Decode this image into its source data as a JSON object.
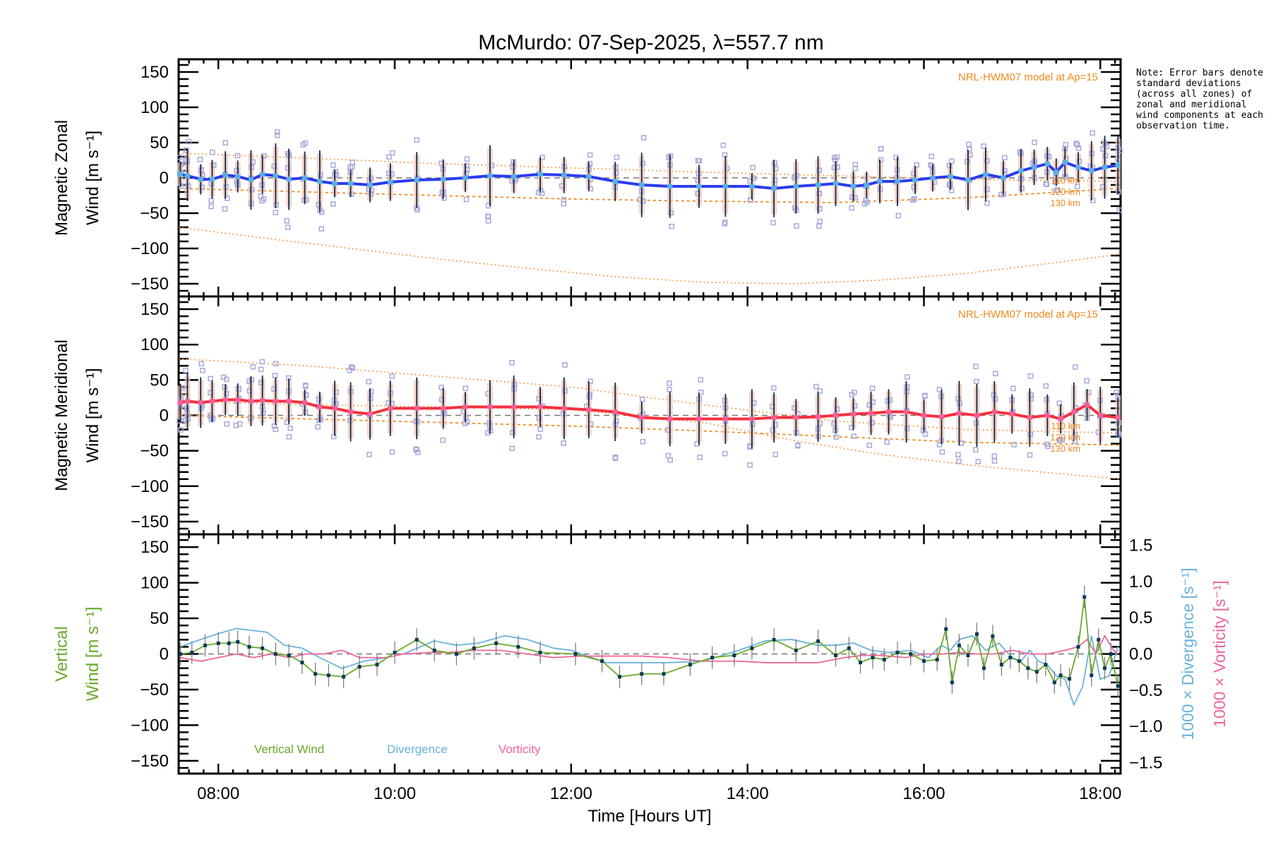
{
  "page_title": "McMurdo: 07-Sep-2025, λ=557.7 nm",
  "note": "Note: Error bars denote standard deviations (across all zones) of zonal and meridional wind components at each observation time.",
  "colors": {
    "zonal": "#2b3bf0",
    "zonal_marker": "#5ab0de",
    "meridional": "#f5303c",
    "meridional_marker": "#f0609a",
    "vertical": "#6aaa2a",
    "divergence": "#6ab2dc",
    "vorticity": "#f0659a",
    "model": "#f08a1e",
    "scatter": "#a8a8dc",
    "errorbar": "#0a2a4a"
  },
  "chart_data": [
    {
      "id": "zonal",
      "type": "line",
      "title": "McMurdo: 07-Sep-2025, λ=557.7 nm",
      "ylabel_line1": "Magnetic Zonal",
      "ylabel_line2": "Wind [m s⁻¹]",
      "xlabel": "",
      "ylim": [
        -168,
        168
      ],
      "yticks": [
        150,
        100,
        50,
        0,
        -50,
        -100,
        -150
      ],
      "xlim_hours": [
        7.55,
        18.23
      ],
      "model_label": "NRL-HWM07 model at Ap=15",
      "model_alt_labels": [
        "110 km",
        "120 km",
        "130 km"
      ],
      "series": [
        {
          "name": "Zonal wind",
          "x": [
            7.57,
            7.65,
            7.8,
            7.93,
            8.08,
            8.22,
            8.37,
            8.5,
            8.65,
            8.8,
            8.98,
            9.15,
            9.32,
            9.5,
            9.72,
            9.95,
            10.25,
            10.55,
            10.8,
            11.08,
            11.35,
            11.65,
            11.92,
            12.2,
            12.5,
            12.8,
            13.12,
            13.45,
            13.75,
            14.05,
            14.3,
            14.55,
            14.8,
            15.0,
            15.2,
            15.35,
            15.5,
            15.7,
            15.9,
            16.1,
            16.3,
            16.5,
            16.7,
            16.9,
            17.1,
            17.25,
            17.4,
            17.5,
            17.6,
            17.75,
            17.9,
            18.05,
            18.2
          ],
          "y": [
            5,
            3,
            -2,
            -2,
            4,
            2,
            -3,
            5,
            3,
            -2,
            0,
            -5,
            -8,
            -8,
            -10,
            -6,
            -3,
            -2,
            0,
            3,
            2,
            5,
            4,
            2,
            -5,
            -10,
            -12,
            -12,
            -12,
            -12,
            -15,
            -12,
            -10,
            -8,
            -12,
            -10,
            -5,
            -5,
            -3,
            0,
            2,
            -3,
            5,
            0,
            10,
            15,
            20,
            8,
            22,
            15,
            10,
            15,
            18
          ]
        },
        {
          "name": "Model 110 km",
          "x": [
            7.55,
            9,
            10.5,
            12,
            13.5,
            15,
            16.5,
            18.23
          ],
          "y": [
            35,
            28,
            20,
            14,
            8,
            3,
            -2,
            -5
          ]
        },
        {
          "name": "Model 120 km",
          "x": [
            7.55,
            9,
            10.5,
            12,
            13.5,
            15,
            16.5,
            18.23
          ],
          "y": [
            -15,
            -20,
            -25,
            -30,
            -33,
            -35,
            -28,
            -15
          ]
        },
        {
          "name": "Model 130 km",
          "x": [
            7.55,
            8.5,
            9.5,
            10.5,
            11.5,
            12.5,
            13.5,
            14.5,
            15.5,
            16.5,
            17.5,
            18.23
          ],
          "y": [
            -70,
            -85,
            -100,
            -115,
            -128,
            -140,
            -148,
            -150,
            -145,
            -135,
            -120,
            -108
          ]
        }
      ]
    },
    {
      "id": "meridional",
      "type": "line",
      "ylabel_line1": "Magnetic Meridional",
      "ylabel_line2": "Wind [m s⁻¹]",
      "ylim": [
        -168,
        168
      ],
      "yticks": [
        150,
        100,
        50,
        0,
        -50,
        -100,
        -150
      ],
      "xlim_hours": [
        7.55,
        18.23
      ],
      "model_label": "NRL-HWM07 model at Ap=15",
      "model_alt_labels": [
        "110 km",
        "120 km",
        "130 km"
      ],
      "series": [
        {
          "name": "Meridional wind",
          "x": [
            7.57,
            7.65,
            7.8,
            7.93,
            8.08,
            8.22,
            8.37,
            8.5,
            8.65,
            8.8,
            8.98,
            9.15,
            9.32,
            9.5,
            9.72,
            9.95,
            10.25,
            10.55,
            10.8,
            11.08,
            11.35,
            11.65,
            11.92,
            12.2,
            12.5,
            12.8,
            13.12,
            13.45,
            13.75,
            14.05,
            14.3,
            14.55,
            14.8,
            15.0,
            15.2,
            15.4,
            15.6,
            15.8,
            16.0,
            16.2,
            16.4,
            16.6,
            16.8,
            17.0,
            17.2,
            17.4,
            17.55,
            17.7,
            17.85,
            18.0,
            18.2
          ],
          "y": [
            18,
            20,
            18,
            20,
            22,
            22,
            20,
            21,
            20,
            20,
            18,
            12,
            10,
            5,
            2,
            10,
            10,
            10,
            12,
            12,
            12,
            12,
            10,
            8,
            5,
            -3,
            -5,
            -5,
            -5,
            -5,
            -3,
            -3,
            -2,
            0,
            2,
            3,
            5,
            5,
            0,
            -2,
            3,
            0,
            5,
            2,
            -3,
            0,
            -5,
            5,
            15,
            0,
            -3
          ]
        },
        {
          "name": "Model 110 km",
          "x": [
            7.55,
            9,
            10.5,
            12,
            13.5,
            15,
            16.5,
            18.23
          ],
          "y": [
            80,
            70,
            55,
            40,
            15,
            -8,
            -20,
            -25
          ]
        },
        {
          "name": "Model 120 km",
          "x": [
            7.55,
            9,
            10.5,
            12,
            13.5,
            15,
            16.5,
            18.23
          ],
          "y": [
            0,
            -5,
            -10,
            -15,
            -22,
            -30,
            -38,
            -42
          ]
        },
        {
          "name": "Model 130 km",
          "x": [
            7.55,
            9,
            10.5,
            12,
            13.5,
            14.5,
            15.5,
            16.5,
            17.5,
            18.23
          ],
          "y": [
            20,
            15,
            12,
            8,
            -10,
            -35,
            -55,
            -70,
            -82,
            -90
          ]
        }
      ]
    },
    {
      "id": "vertical",
      "type": "line",
      "ylabel_line1": "Vertical",
      "ylabel_line2": "Wind [m s⁻¹]",
      "xlabel": "Time [Hours UT]",
      "xticks": [
        "08:00",
        "10:00",
        "12:00",
        "14:00",
        "16:00",
        "18:00"
      ],
      "ylim": [
        -168,
        168
      ],
      "yticks": [
        150,
        100,
        50,
        0,
        -50,
        -100,
        -150
      ],
      "y2lim": [
        -1.65,
        1.65
      ],
      "y2ticks": [
        "1.5",
        "1.0",
        "0.5",
        "0.0",
        "−0.5",
        "−1.0",
        "−1.5"
      ],
      "y2label_divergence": "1000 × Divergence [s⁻¹]",
      "y2label_vorticity": "1000 × Vorticity [s⁻¹]",
      "xlim_hours": [
        7.55,
        18.23
      ],
      "legend": [
        "Vertical Wind",
        "Divergence",
        "Vorticity"
      ],
      "legend_position": "bottom-left",
      "series": [
        {
          "name": "Vertical Wind",
          "x": [
            7.57,
            7.7,
            7.85,
            8.0,
            8.12,
            8.22,
            8.35,
            8.5,
            8.65,
            8.8,
            8.95,
            9.1,
            9.25,
            9.42,
            9.6,
            9.8,
            10.0,
            10.25,
            10.45,
            10.7,
            10.9,
            11.15,
            11.4,
            11.65,
            12.05,
            12.35,
            12.55,
            12.8,
            13.05,
            13.35,
            13.6,
            13.85,
            14.05,
            14.3,
            14.55,
            14.8,
            15.0,
            15.15,
            15.28,
            15.42,
            15.55,
            15.7,
            15.85,
            16.0,
            16.15,
            16.25,
            16.32,
            16.4,
            16.5,
            16.6,
            16.68,
            16.78,
            16.88,
            16.98,
            17.08,
            17.18,
            17.28,
            17.38,
            17.48,
            17.55,
            17.65,
            17.75,
            17.82,
            17.9,
            17.98,
            18.05,
            18.12,
            18.2
          ],
          "y": [
            0,
            2,
            12,
            15,
            15,
            17,
            10,
            8,
            0,
            -2,
            -12,
            -28,
            -30,
            -32,
            -18,
            -15,
            2,
            20,
            5,
            0,
            8,
            15,
            10,
            2,
            0,
            -10,
            -32,
            -28,
            -28,
            -15,
            -5,
            -2,
            8,
            20,
            5,
            18,
            -2,
            8,
            -12,
            -5,
            -8,
            2,
            0,
            -10,
            -8,
            35,
            -40,
            12,
            -2,
            28,
            -20,
            25,
            -15,
            -5,
            -10,
            -20,
            -25,
            -15,
            -40,
            -30,
            -35,
            10,
            80,
            -30,
            20,
            -20,
            0,
            -45
          ]
        },
        {
          "name": "Divergence",
          "axis": "y2",
          "x": [
            7.57,
            7.8,
            8.0,
            8.2,
            8.35,
            8.55,
            8.75,
            8.95,
            9.15,
            9.4,
            9.65,
            9.9,
            10.1,
            10.45,
            10.7,
            10.95,
            11.25,
            11.5,
            11.8,
            12.0,
            12.4,
            12.8,
            13.1,
            13.5,
            13.9,
            14.2,
            14.5,
            14.8,
            15.0,
            15.2,
            15.4,
            15.6,
            15.85,
            16.05,
            16.2,
            16.3,
            16.4,
            16.55,
            16.7,
            16.85,
            17.0,
            17.1,
            17.2,
            17.3,
            17.4,
            17.5,
            17.6,
            17.7,
            17.8,
            17.9,
            18.0,
            18.1,
            18.2
          ],
          "y": [
            0.1,
            0.2,
            0.28,
            0.35,
            0.33,
            0.3,
            0.12,
            0.08,
            -0.05,
            -0.2,
            -0.1,
            -0.05,
            0.0,
            0.18,
            0.12,
            0.15,
            0.25,
            0.2,
            0.08,
            0.05,
            -0.12,
            -0.12,
            -0.12,
            -0.1,
            0.05,
            0.18,
            0.2,
            0.12,
            0.12,
            0.15,
            0.05,
            0.02,
            0.05,
            -0.05,
            0.12,
            0.05,
            0.2,
            0.25,
            0.05,
            0.15,
            -0.05,
            -0.1,
            0.05,
            -0.1,
            -0.15,
            -0.3,
            -0.35,
            -0.7,
            -0.45,
            0.25,
            -0.35,
            -0.3,
            0.1
          ]
        },
        {
          "name": "Vorticity",
          "axis": "y2",
          "x": [
            7.57,
            7.8,
            8.0,
            8.2,
            8.4,
            8.6,
            8.8,
            9.0,
            9.2,
            9.4,
            9.6,
            9.9,
            10.1,
            10.4,
            10.6,
            10.9,
            11.2,
            11.5,
            11.8,
            12.1,
            12.5,
            12.8,
            13.1,
            13.5,
            13.9,
            14.2,
            14.5,
            14.8,
            15.1,
            15.3,
            15.5,
            15.8,
            16.0,
            16.2,
            16.4,
            16.6,
            16.8,
            17.0,
            17.2,
            17.4,
            17.6,
            17.75,
            17.85,
            17.95,
            18.05,
            18.15,
            18.2
          ],
          "y": [
            -0.05,
            -0.1,
            -0.05,
            0.0,
            -0.05,
            0.0,
            -0.05,
            0.0,
            0.0,
            0.05,
            -0.05,
            -0.05,
            0.0,
            0.02,
            0.02,
            0.05,
            0.05,
            0.0,
            -0.05,
            -0.03,
            -0.03,
            -0.03,
            -0.05,
            -0.1,
            -0.1,
            -0.12,
            -0.12,
            -0.12,
            -0.05,
            -0.02,
            -0.02,
            -0.05,
            0.0,
            0.0,
            0.02,
            0.0,
            0.0,
            0.05,
            0.0,
            0.0,
            0.05,
            0.1,
            0.2,
            0.0,
            0.25,
            0.05,
            0.0
          ]
        }
      ]
    }
  ]
}
